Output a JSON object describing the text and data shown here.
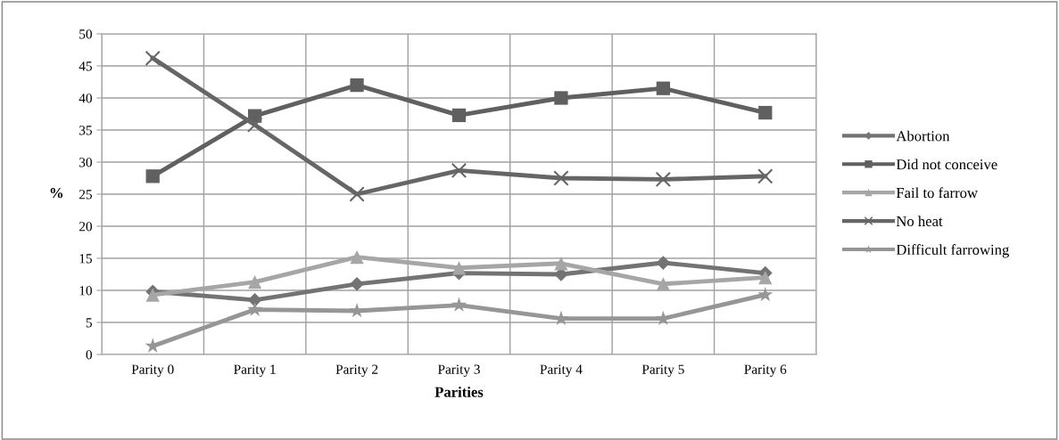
{
  "chart_data": {
    "type": "line",
    "xlabel": "Parities",
    "ylabel": "%",
    "categories": [
      "Parity 0",
      "Parity 1",
      "Parity 2",
      "Parity 3",
      "Parity 4",
      "Parity 5",
      "Parity 6"
    ],
    "series": [
      {
        "name": "Abortion",
        "color": "#737373",
        "marker": "diamond",
        "values": [
          9.8,
          8.5,
          11,
          12.7,
          12.5,
          14.3,
          12.7
        ]
      },
      {
        "name": "Did not conceive",
        "color": "#606060",
        "marker": "square",
        "values": [
          27.8,
          37.2,
          42,
          37.3,
          40,
          41.5,
          37.7
        ]
      },
      {
        "name": "Fail to farrow",
        "color": "#a6a6a6",
        "marker": "triangle",
        "values": [
          9.3,
          11.3,
          15.2,
          13.5,
          14.2,
          11,
          12
        ]
      },
      {
        "name": "No heat",
        "color": "#666666",
        "marker": "cross",
        "values": [
          46.2,
          35.8,
          25,
          28.7,
          27.5,
          27.3,
          27.8
        ]
      },
      {
        "name": "Difficult farrowing",
        "color": "#969696",
        "marker": "star",
        "values": [
          1.3,
          7,
          6.8,
          7.7,
          5.6,
          5.6,
          9.3
        ]
      }
    ],
    "ylim": [
      0,
      50
    ],
    "yticks": [
      0,
      5,
      10,
      15,
      20,
      25,
      30,
      35,
      40,
      45,
      50
    ],
    "grid": true,
    "legend": "right",
    "line_style": "solid"
  }
}
